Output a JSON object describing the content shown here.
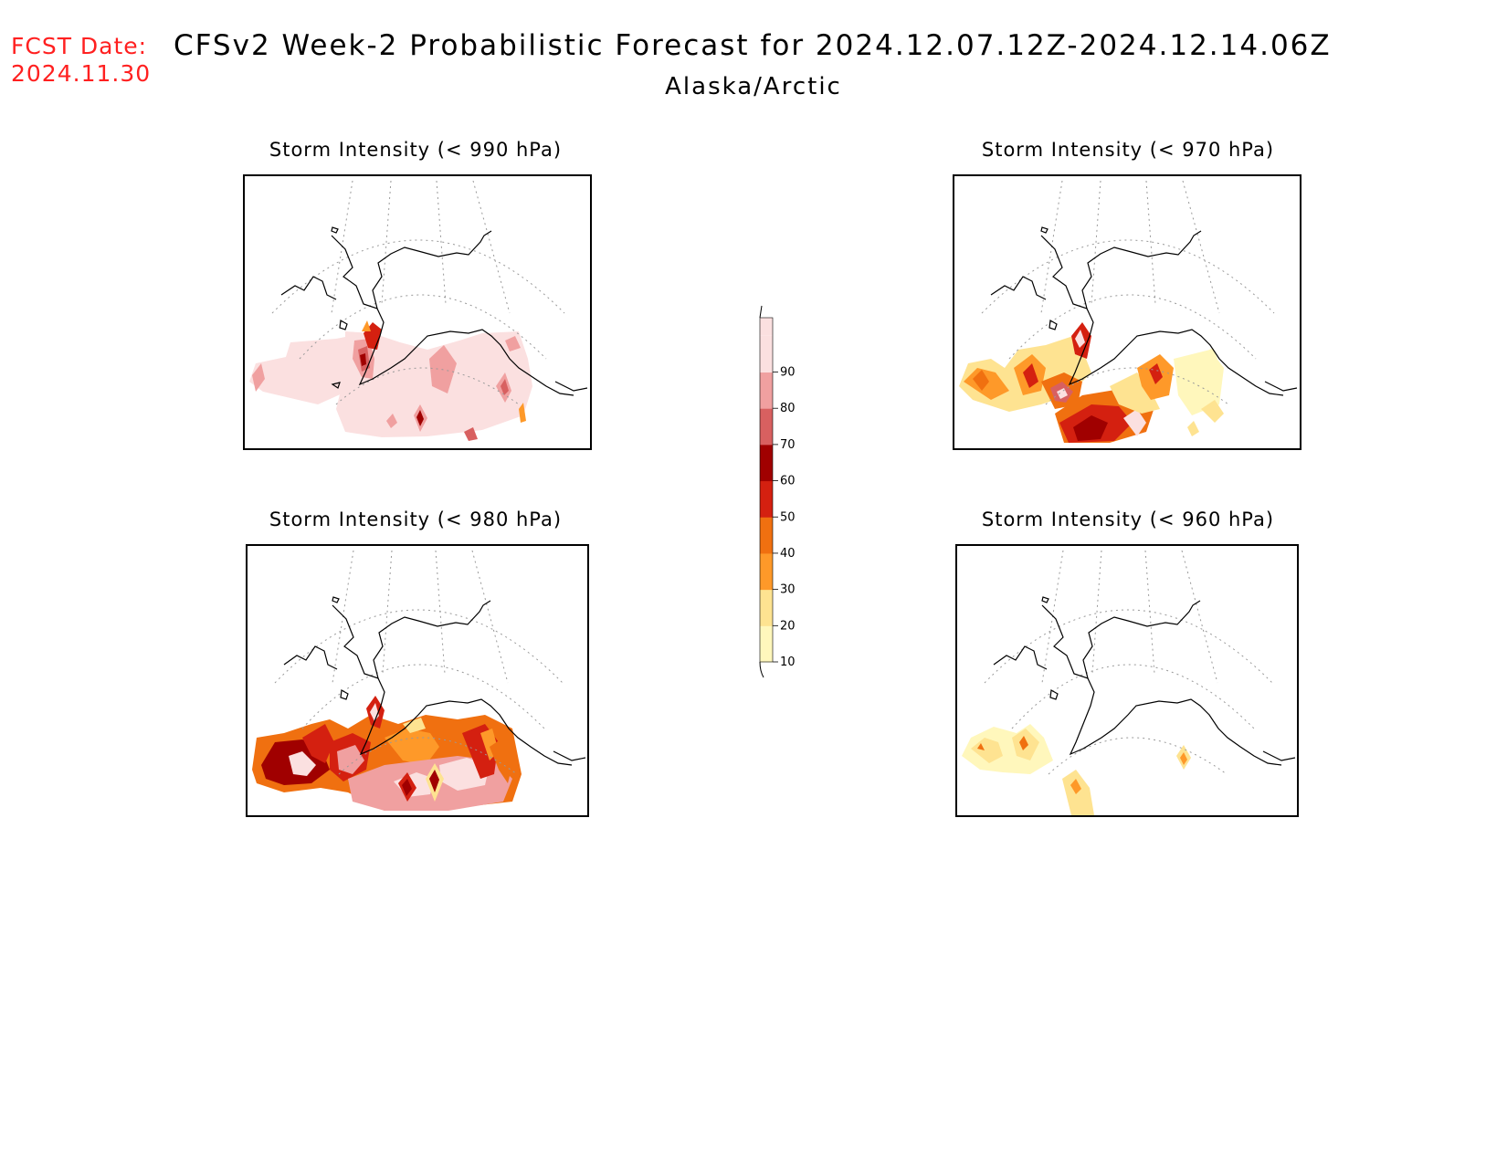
{
  "header": {
    "fcst_label": "FCST Date:",
    "fcst_date": "2024.11.30",
    "title": "CFSv2 Week-2 Probabilistic Forecast for 2024.12.07.12Z-2024.12.14.06Z",
    "subtitle": "Alaska/Arctic"
  },
  "panels": [
    {
      "id": "p990",
      "title": "Storm Intensity (< 990 hPa)"
    },
    {
      "id": "p970",
      "title": "Storm Intensity (< 970 hPa)"
    },
    {
      "id": "p980",
      "title": "Storm Intensity (< 980 hPa)"
    },
    {
      "id": "p960",
      "title": "Storm Intensity (< 960 hPa)"
    }
  ],
  "colorbar": {
    "levels": [
      "10",
      "20",
      "30",
      "40",
      "50",
      "60",
      "70",
      "80",
      "90"
    ],
    "colors": [
      "#fff7bc",
      "#fee391",
      "#fe9929",
      "#f07010",
      "#d42010",
      "#a00000",
      "#d86060",
      "#f0a0a0",
      "#fbe0e0"
    ]
  }
}
